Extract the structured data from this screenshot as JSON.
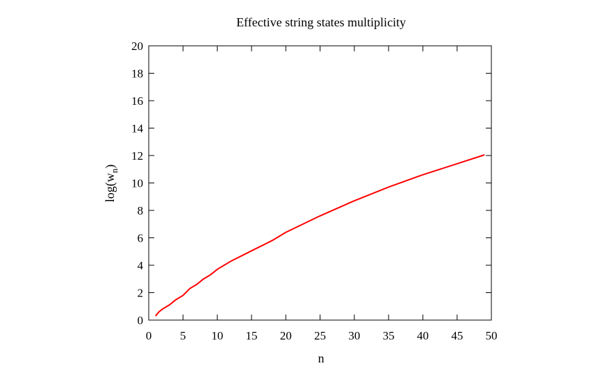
{
  "chart_data": {
    "type": "line",
    "title": "Effective string states multiplicity",
    "x_label": "n",
    "y_label": {
      "base": "log(w",
      "sub": "n",
      "close": ")"
    },
    "x": [
      1,
      1.5,
      2,
      3,
      4,
      5,
      6,
      7,
      8,
      9,
      10,
      12,
      14,
      16,
      18,
      20,
      25,
      30,
      35,
      40,
      45,
      49
    ],
    "series": [
      {
        "color": "#ff0000",
        "values": [
          0.3,
          0.6,
          0.8,
          1.1,
          1.5,
          1.8,
          2.3,
          2.6,
          3.0,
          3.3,
          3.7,
          4.3,
          4.8,
          5.3,
          5.8,
          6.4,
          7.6,
          8.7,
          9.7,
          10.6,
          11.4,
          12.05
        ]
      }
    ],
    "xlim": [
      0,
      50
    ],
    "xticks": [
      0,
      5,
      10,
      15,
      20,
      25,
      30,
      35,
      40,
      45,
      50
    ],
    "ylim": [
      0,
      20
    ],
    "yticks": [
      0,
      2,
      4,
      6,
      8,
      10,
      12,
      14,
      16,
      18,
      20
    ]
  }
}
